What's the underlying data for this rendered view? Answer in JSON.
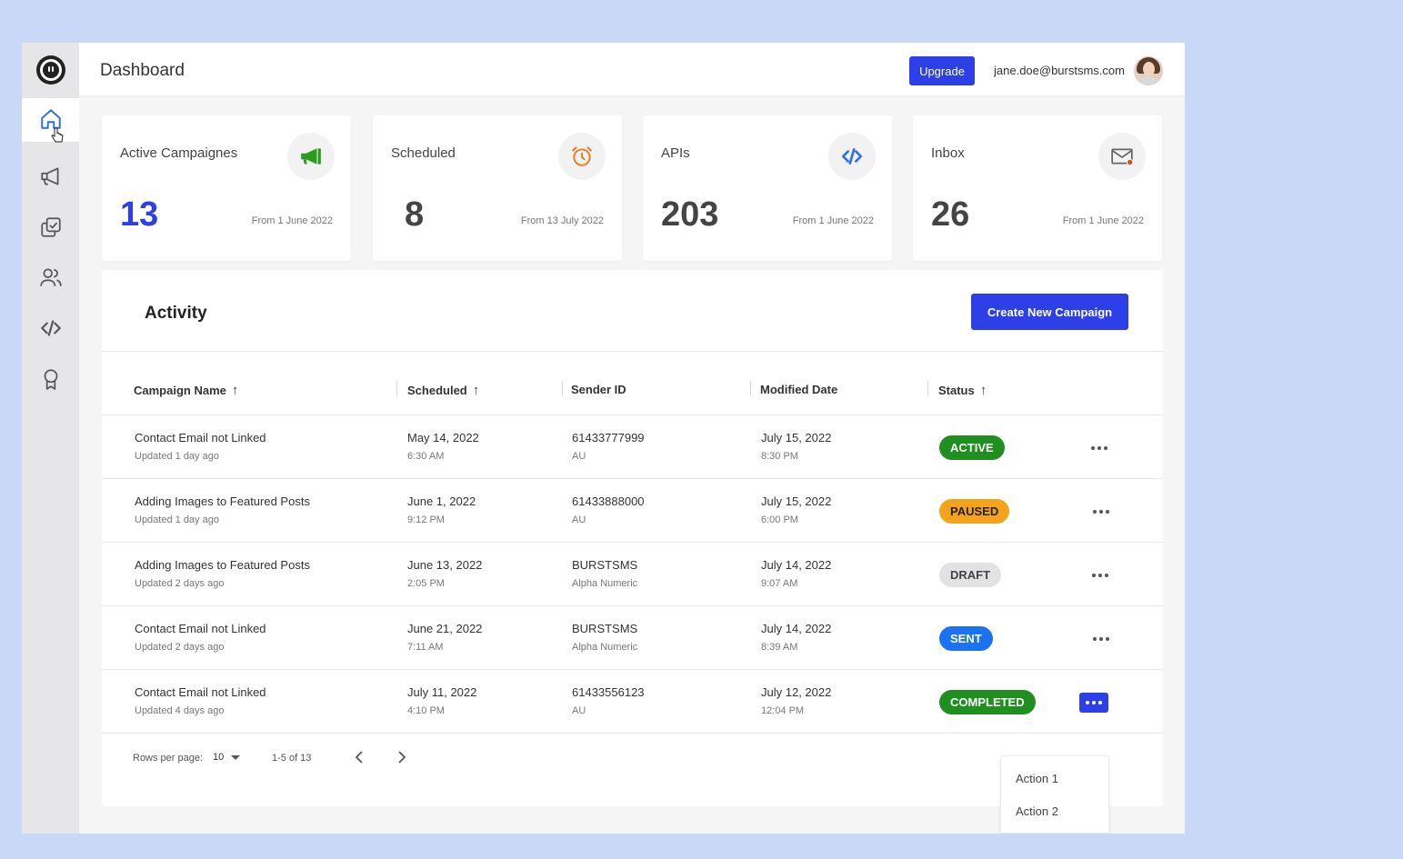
{
  "header": {
    "title": "Dashboard",
    "upgrade_label": "Upgrade",
    "user_email": "jane.doe@burstsms.com"
  },
  "sidebar": {
    "items": [
      {
        "name": "home",
        "icon": "home-icon",
        "active": true
      },
      {
        "name": "campaigns",
        "icon": "megaphone-icon"
      },
      {
        "name": "templates",
        "icon": "copy-check-icon"
      },
      {
        "name": "contacts",
        "icon": "users-icon"
      },
      {
        "name": "api",
        "icon": "code-icon"
      },
      {
        "name": "rewards",
        "icon": "award-icon"
      }
    ]
  },
  "stats": [
    {
      "label": "Active Campaignes",
      "value": "13",
      "since": "From 1 June 2022",
      "icon": "megaphone-icon",
      "color": "#2a9d1e"
    },
    {
      "label": "Scheduled",
      "value": "8",
      "since": "From 13 July 2022",
      "icon": "alarm-icon",
      "color": "#f07a1a"
    },
    {
      "label": "APIs",
      "value": "203",
      "since": "From 1 June 2022",
      "icon": "code-icon",
      "color": "#2d6fe6"
    },
    {
      "label": "Inbox",
      "value": "26",
      "since": "From 1 June 2022",
      "icon": "mail-icon",
      "color": "#e04a1a"
    }
  ],
  "activity": {
    "title": "Activity",
    "create_label": "Create New Campaign",
    "columns": [
      "Campaign Name",
      "Scheduled",
      "Sender ID",
      "Modified Date",
      "Status"
    ],
    "rows": [
      {
        "name": "Contact Email not Linked",
        "updated": "Updated 1 day ago",
        "sched_date": "May 14, 2022",
        "sched_time": "6:30 AM",
        "sender": "61433777999",
        "sender_sub": "AU",
        "mod_date": "July 15, 2022",
        "mod_time": "8:30 PM",
        "status": "ACTIVE"
      },
      {
        "name": "Adding Images to Featured Posts",
        "updated": "Updated 1 day ago",
        "sched_date": "June 1, 2022",
        "sched_time": "9:12 PM",
        "sender": "61433888000",
        "sender_sub": "AU",
        "mod_date": "July 15, 2022",
        "mod_time": "6:00 PM",
        "status": "PAUSED"
      },
      {
        "name": "Adding Images to Featured Posts",
        "updated": "Updated 2 days ago",
        "sched_date": "June 13, 2022",
        "sched_time": "2:05 PM",
        "sender": "BURSTSMS",
        "sender_sub": "Alpha Numeric",
        "mod_date": "July 14, 2022",
        "mod_time": "9:07 AM",
        "status": "DRAFT"
      },
      {
        "name": "Contact Email not Linked",
        "updated": "Updated 2 days ago",
        "sched_date": "June 21, 2022",
        "sched_time": "7:11 AM",
        "sender": "BURSTSMS",
        "sender_sub": "Alpha Numeric",
        "mod_date": "July 14, 2022",
        "mod_time": "8:39 AM",
        "status": "SENT"
      },
      {
        "name": "Contact Email not Linked",
        "updated": "Updated 4 days ago",
        "sched_date": "July 11, 2022",
        "sched_time": "4:10 PM",
        "sender": "61433556123",
        "sender_sub": "AU",
        "mod_date": "July 12, 2022",
        "mod_time": "12:04 PM",
        "status": "COMPLETED"
      }
    ],
    "status_colors": {
      "ACTIVE": {
        "bg": "#1f8f1f",
        "fg": "#ffffff"
      },
      "PAUSED": {
        "bg": "#f5a31a",
        "fg": "#222222"
      },
      "DRAFT": {
        "bg": "#e2e2e4",
        "fg": "#444444"
      },
      "SENT": {
        "bg": "#1a73f0",
        "fg": "#ffffff"
      },
      "COMPLETED": {
        "bg": "#1f8f1f",
        "fg": "#ffffff"
      }
    },
    "rows_per_page_label": "Rows per page:",
    "rows_per_page": "10",
    "range": "1-5 of 13",
    "menu": [
      "Action 1",
      "Action 2"
    ]
  }
}
